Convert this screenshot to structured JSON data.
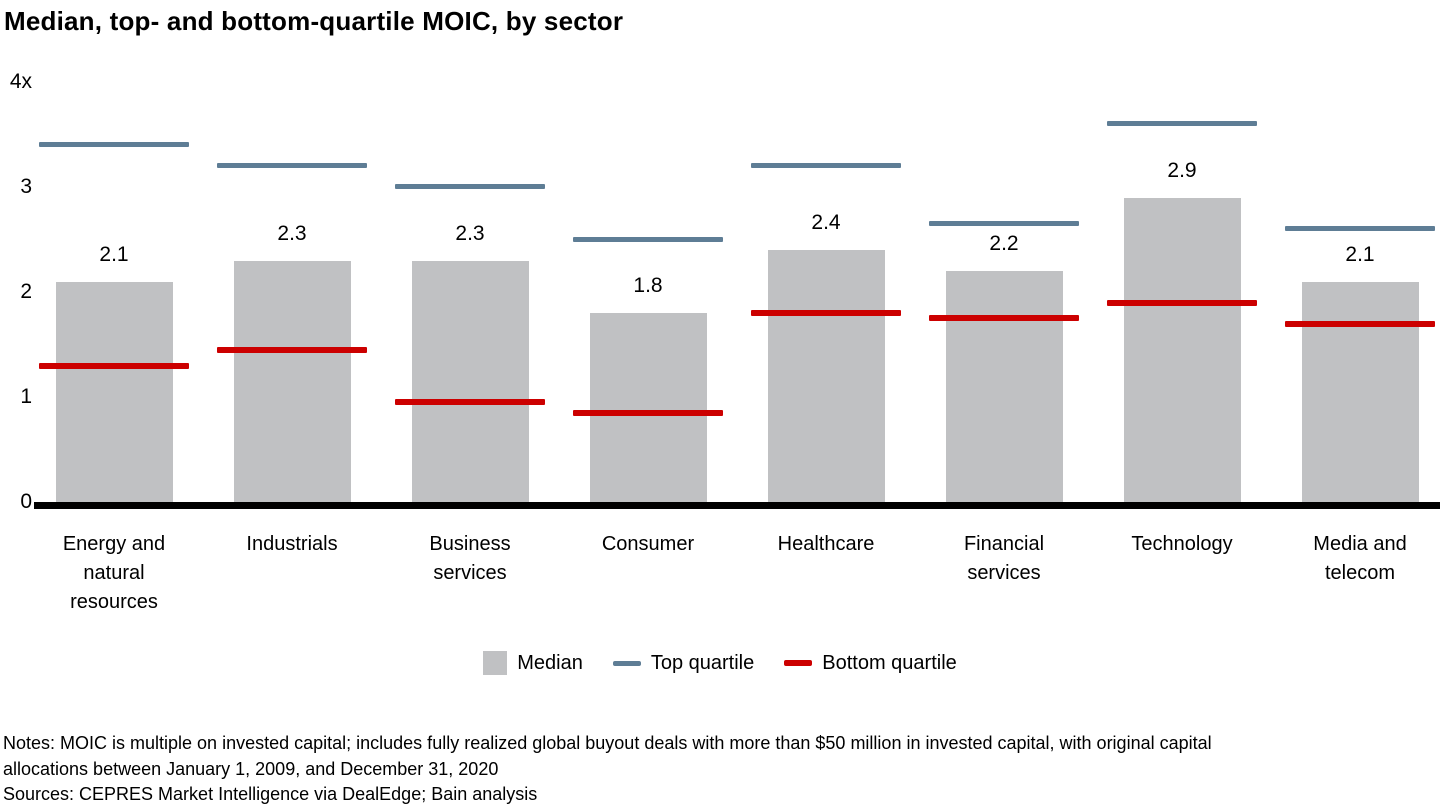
{
  "title": "Median, top- and bottom-quartile MOIC, by sector",
  "chart_data": {
    "type": "bar",
    "title": "Median, top- and bottom-quartile MOIC, by sector",
    "categories": [
      "Energy and natural resources",
      "Industrials",
      "Business services",
      "Consumer",
      "Healthcare",
      "Financial services",
      "Technology",
      "Media and telecom"
    ],
    "series": [
      {
        "name": "Median",
        "type": "bar",
        "values": [
          2.1,
          2.3,
          2.3,
          1.8,
          2.4,
          2.2,
          2.9,
          2.1
        ]
      },
      {
        "name": "Top quartile",
        "type": "dash-marker",
        "values": [
          3.4,
          3.2,
          3.0,
          2.5,
          3.2,
          2.65,
          3.6,
          2.6
        ]
      },
      {
        "name": "Bottom quartile",
        "type": "dash-marker",
        "values": [
          1.3,
          1.45,
          0.95,
          0.85,
          1.8,
          1.75,
          1.9,
          1.7
        ]
      }
    ],
    "bar_value_labels": [
      "2.1",
      "2.3",
      "2.3",
      "1.8",
      "2.4",
      "2.2",
      "2.9",
      "2.1"
    ],
    "y_axis": {
      "min": 0,
      "max": 4,
      "ticks": [
        {
          "value": 0,
          "label": "0"
        },
        {
          "value": 1,
          "label": "1"
        },
        {
          "value": 2,
          "label": "2"
        },
        {
          "value": 3,
          "label": "3"
        },
        {
          "value": 4,
          "label": "4x"
        }
      ]
    },
    "grid": false,
    "legend_position": "bottom",
    "colors": {
      "median_bar": "#c0c1c3",
      "top_quartile": "#5e7d95",
      "bottom_quartile": "#cc0000",
      "axis": "#000000"
    }
  },
  "legend": [
    {
      "label": "Median",
      "swatch": "square",
      "color": "#c0c1c3"
    },
    {
      "label": "Top quartile",
      "swatch": "line",
      "color": "#5e7d95"
    },
    {
      "label": "Bottom quartile",
      "swatch": "line",
      "color": "#cc0000"
    }
  ],
  "footnotes": {
    "notes_line1": "Notes: MOIC is multiple on invested capital; includes fully realized global buyout deals with more than $50 million in invested capital, with original capital",
    "notes_line2": "allocations between January 1, 2009, and December 31, 2020",
    "sources": "Sources: CEPRES Market Intelligence via DealEdge; Bain analysis"
  }
}
